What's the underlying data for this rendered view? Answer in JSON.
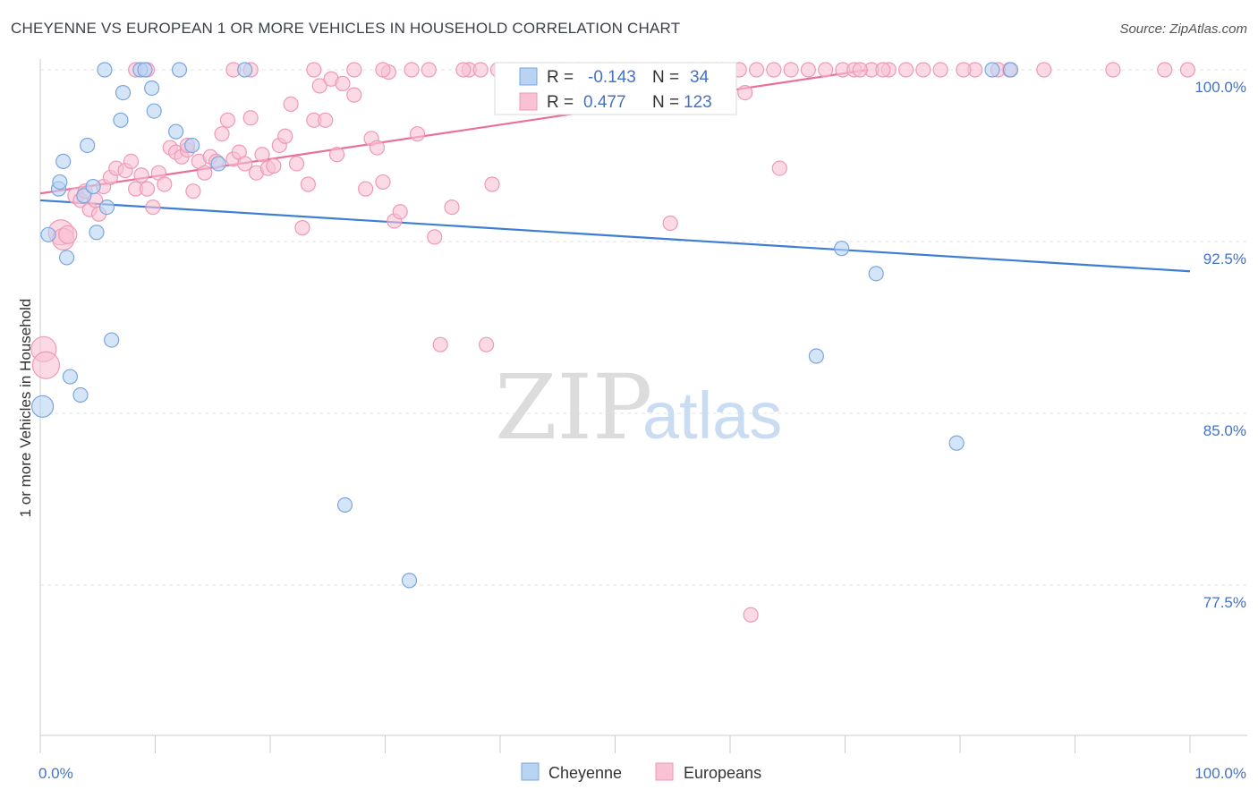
{
  "title": "CHEYENNE VS EUROPEAN 1 OR MORE VEHICLES IN HOUSEHOLD CORRELATION CHART",
  "source": "Source: ZipAtlas.com",
  "watermark": {
    "zip": "ZIP",
    "atlas": "atlas"
  },
  "legend": {
    "r_label": "R =",
    "n_label": "N =",
    "rows": [
      {
        "r": "-0.143",
        "n": "34"
      },
      {
        "r": "0.477",
        "n": "123"
      }
    ]
  },
  "bottom_legend": [
    "Cheyenne",
    "Europeans"
  ],
  "colors": {
    "cheyenne_fill": "#b9d3f3",
    "cheyenne_stroke": "#7aa6de",
    "cheyenne_line": "#3d7ed4",
    "europeans_fill": "#f8c2d4",
    "europeans_stroke": "#ee99b6",
    "europeans_line": "#e8709a",
    "tick_text": "#4472c4"
  },
  "chart_data": {
    "type": "scatter",
    "xlabel": "",
    "ylabel": "1 or more Vehicles in Household",
    "xlim": [
      0,
      100
    ],
    "ylim": [
      70.0,
      100.0
    ],
    "x_tick_labels": [
      "0.0%",
      "100.0%"
    ],
    "y_ticks": [
      100.0,
      92.5,
      85.0,
      77.5
    ],
    "y_tick_labels": [
      "100.0%",
      "92.5%",
      "85.0%",
      "77.5%"
    ],
    "grid": true,
    "legend_position": "top-center",
    "series": [
      {
        "name": "Cheyenne",
        "r": -0.143,
        "n": 34,
        "trend": {
          "x0": 0,
          "y0": 94.3,
          "x1": 100,
          "y1": 91.2
        },
        "points": [
          [
            0.2,
            85.3,
            24
          ],
          [
            0.7,
            92.8,
            16
          ],
          [
            1.6,
            94.8,
            16
          ],
          [
            1.7,
            95.1,
            16
          ],
          [
            2.0,
            96.0,
            16
          ],
          [
            2.3,
            91.8,
            16
          ],
          [
            2.6,
            86.6,
            16
          ],
          [
            3.5,
            85.8,
            16
          ],
          [
            3.8,
            94.5,
            16
          ],
          [
            4.1,
            96.7,
            16
          ],
          [
            4.6,
            94.9,
            16
          ],
          [
            4.9,
            92.9,
            16
          ],
          [
            5.8,
            94.0,
            16
          ],
          [
            6.2,
            88.2,
            16
          ],
          [
            5.6,
            100.0,
            16
          ],
          [
            7.2,
            99.0,
            16
          ],
          [
            7.0,
            97.8,
            16
          ],
          [
            8.7,
            100.0,
            16
          ],
          [
            9.1,
            100.0,
            16
          ],
          [
            9.7,
            99.2,
            16
          ],
          [
            9.9,
            98.2,
            16
          ],
          [
            12.1,
            100.0,
            16
          ],
          [
            11.8,
            97.3,
            16
          ],
          [
            13.2,
            96.7,
            16
          ],
          [
            15.5,
            95.9,
            16
          ],
          [
            17.8,
            100.0,
            16
          ],
          [
            26.5,
            81.0,
            16
          ],
          [
            32.1,
            77.7,
            16
          ],
          [
            67.5,
            87.5,
            16
          ],
          [
            69.7,
            92.2,
            16
          ],
          [
            72.7,
            91.1,
            16
          ],
          [
            79.7,
            83.7,
            16
          ],
          [
            82.8,
            100.0,
            16
          ],
          [
            84.4,
            100.0,
            16
          ]
        ]
      },
      {
        "name": "Europeans",
        "r": 0.477,
        "n": 123,
        "trend": {
          "x0": 0,
          "y0": 94.6,
          "x1": 72,
          "y1": 100.0
        },
        "points": [
          [
            0.3,
            87.8,
            28
          ],
          [
            0.5,
            87.1,
            30
          ],
          [
            1.8,
            92.9,
            28
          ],
          [
            2.0,
            92.6,
            24
          ],
          [
            2.4,
            92.8,
            20
          ],
          [
            3.1,
            94.5,
            18
          ],
          [
            3.5,
            94.3,
            16
          ],
          [
            3.9,
            94.7,
            16
          ],
          [
            4.3,
            93.9,
            16
          ],
          [
            4.8,
            94.3,
            16
          ],
          [
            5.1,
            93.7,
            16
          ],
          [
            5.5,
            94.9,
            16
          ],
          [
            6.1,
            95.3,
            16
          ],
          [
            6.6,
            95.7,
            16
          ],
          [
            7.4,
            95.6,
            16
          ],
          [
            7.9,
            96.0,
            16
          ],
          [
            8.3,
            94.8,
            16
          ],
          [
            8.8,
            95.4,
            16
          ],
          [
            9.3,
            94.8,
            16
          ],
          [
            9.8,
            94.0,
            16
          ],
          [
            10.3,
            95.5,
            16
          ],
          [
            10.8,
            95.0,
            16
          ],
          [
            11.3,
            96.6,
            16
          ],
          [
            11.8,
            96.4,
            16
          ],
          [
            12.3,
            96.2,
            16
          ],
          [
            12.8,
            96.5,
            16
          ],
          [
            13.3,
            94.7,
            16
          ],
          [
            13.8,
            96.0,
            16
          ],
          [
            14.3,
            95.5,
            16
          ],
          [
            14.8,
            96.2,
            16
          ],
          [
            15.3,
            96.0,
            16
          ],
          [
            15.8,
            97.2,
            16
          ],
          [
            16.3,
            97.8,
            16
          ],
          [
            16.8,
            96.1,
            16
          ],
          [
            17.3,
            96.4,
            16
          ],
          [
            17.8,
            95.9,
            16
          ],
          [
            18.3,
            97.9,
            16
          ],
          [
            18.8,
            95.5,
            16
          ],
          [
            19.3,
            96.3,
            16
          ],
          [
            19.8,
            95.7,
            16
          ],
          [
            20.3,
            95.8,
            16
          ],
          [
            20.8,
            96.7,
            16
          ],
          [
            21.3,
            97.1,
            16
          ],
          [
            21.8,
            98.5,
            16
          ],
          [
            22.3,
            95.9,
            16
          ],
          [
            22.8,
            93.1,
            16
          ],
          [
            23.3,
            95.0,
            16
          ],
          [
            23.8,
            97.8,
            16
          ],
          [
            24.3,
            99.3,
            16
          ],
          [
            24.8,
            97.8,
            16
          ],
          [
            25.3,
            99.6,
            16
          ],
          [
            25.8,
            96.3,
            16
          ],
          [
            26.3,
            99.4,
            16
          ],
          [
            27.3,
            98.9,
            16
          ],
          [
            28.3,
            94.8,
            16
          ],
          [
            28.8,
            97.0,
            16
          ],
          [
            29.3,
            96.6,
            16
          ],
          [
            29.8,
            95.1,
            16
          ],
          [
            30.3,
            99.9,
            16
          ],
          [
            30.8,
            93.4,
            16
          ],
          [
            31.3,
            93.8,
            16
          ],
          [
            32.8,
            97.2,
            16
          ],
          [
            34.3,
            92.7,
            16
          ],
          [
            34.8,
            88.0,
            16
          ],
          [
            35.8,
            94.0,
            16
          ],
          [
            37.3,
            100.0,
            16
          ],
          [
            38.8,
            88.0,
            16
          ],
          [
            39.3,
            95.0,
            16
          ],
          [
            40.8,
            100.0,
            16
          ],
          [
            42.3,
            100.0,
            16
          ],
          [
            43.8,
            100.0,
            16
          ],
          [
            45.3,
            100.0,
            16
          ],
          [
            53.3,
            100.0,
            16
          ],
          [
            54.8,
            93.3,
            16
          ],
          [
            56.3,
            100.0,
            16
          ],
          [
            57.8,
            100.0,
            16
          ],
          [
            59.3,
            100.0,
            16
          ],
          [
            60.8,
            100.0,
            16
          ],
          [
            62.3,
            100.0,
            16
          ],
          [
            63.8,
            100.0,
            16
          ],
          [
            64.3,
            95.7,
            16
          ],
          [
            66.8,
            100.0,
            16
          ],
          [
            68.3,
            100.0,
            16
          ],
          [
            69.8,
            100.0,
            16
          ],
          [
            70.8,
            100.0,
            16
          ],
          [
            72.3,
            100.0,
            16
          ],
          [
            73.8,
            100.0,
            16
          ],
          [
            75.3,
            100.0,
            16
          ],
          [
            78.3,
            100.0,
            16
          ],
          [
            81.3,
            100.0,
            16
          ],
          [
            84.3,
            100.0,
            16
          ],
          [
            87.3,
            100.0,
            16
          ],
          [
            93.3,
            100.0,
            16
          ],
          [
            99.8,
            100.0,
            16
          ],
          [
            8.3,
            100.0,
            16
          ],
          [
            9.3,
            100.0,
            16
          ],
          [
            16.8,
            100.0,
            16
          ],
          [
            18.3,
            100.0,
            16
          ],
          [
            23.8,
            100.0,
            16
          ],
          [
            27.3,
            100.0,
            16
          ],
          [
            29.8,
            100.0,
            16
          ],
          [
            32.3,
            100.0,
            16
          ],
          [
            33.8,
            100.0,
            16
          ],
          [
            36.8,
            100.0,
            16
          ],
          [
            38.3,
            100.0,
            16
          ],
          [
            39.8,
            100.0,
            16
          ],
          [
            41.3,
            100.0,
            16
          ],
          [
            44.3,
            100.0,
            16
          ],
          [
            46.8,
            100.0,
            16
          ],
          [
            48.3,
            100.0,
            16
          ],
          [
            49.8,
            100.0,
            16
          ],
          [
            51.3,
            100.0,
            16
          ],
          [
            58.8,
            100.0,
            16
          ],
          [
            61.3,
            99.0,
            16
          ],
          [
            65.3,
            100.0,
            16
          ],
          [
            71.3,
            100.0,
            16
          ],
          [
            73.3,
            100.0,
            16
          ],
          [
            76.8,
            100.0,
            16
          ],
          [
            80.3,
            100.0,
            16
          ],
          [
            83.3,
            100.0,
            16
          ],
          [
            97.8,
            100.0,
            16
          ],
          [
            61.8,
            76.2,
            16
          ],
          [
            12.8,
            96.7,
            16
          ]
        ]
      }
    ]
  }
}
